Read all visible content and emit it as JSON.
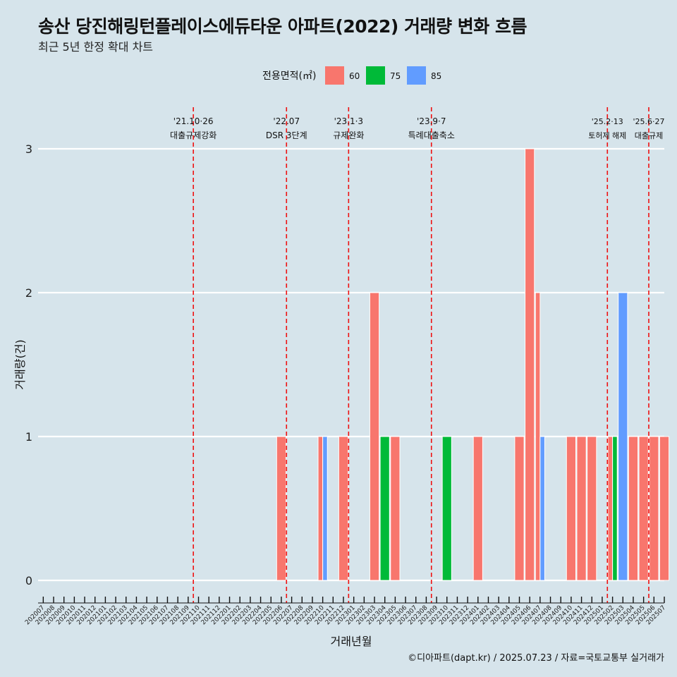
{
  "title": "송산 당진해링턴플레이스에듀타운 아파트(2022) 거래량 변화 흐름",
  "subtitle": "최근 5년 한정 확대 차트",
  "caption": "©디아파트(dapt.kr) / 2025.07.23 / 자료=국토교통부 실거래가",
  "colors": {
    "background": "#d6e4eb",
    "60": "#f8766d",
    "75": "#00ba38",
    "85": "#619cff",
    "event_line": "#ee1111",
    "grid": "#ffffff"
  },
  "chart_data": {
    "type": "bar",
    "xlabel": "거래년월",
    "ylabel": "거래량(건)",
    "ylim": [
      0,
      3
    ],
    "yticks": [
      0,
      1,
      2,
      3
    ],
    "legend_title": "전용면적(㎡)",
    "legend_position": "top",
    "categories": [
      "202007",
      "202008",
      "202009",
      "202010",
      "202011",
      "202012",
      "202101",
      "202102",
      "202103",
      "202104",
      "202105",
      "202106",
      "202107",
      "202108",
      "202109",
      "202110",
      "202111",
      "202112",
      "202201",
      "202202",
      "202203",
      "202204",
      "202205",
      "202206",
      "202207",
      "202208",
      "202209",
      "202210",
      "202211",
      "202212",
      "202301",
      "202302",
      "202303",
      "202304",
      "202305",
      "202306",
      "202307",
      "202308",
      "202309",
      "202310",
      "202311",
      "202312",
      "202401",
      "202402",
      "202403",
      "202404",
      "202405",
      "202406",
      "202407",
      "202408",
      "202409",
      "202410",
      "202411",
      "202412",
      "202501",
      "202502",
      "202503",
      "202504",
      "202505",
      "202506",
      "202507"
    ],
    "series": [
      {
        "name": "60",
        "values": [
          0,
          0,
          0,
          0,
          0,
          0,
          0,
          0,
          0,
          0,
          0,
          0,
          0,
          0,
          0,
          0,
          0,
          0,
          0,
          0,
          0,
          0,
          0,
          1,
          0,
          0,
          0,
          1,
          0,
          1,
          0,
          0,
          2,
          0,
          1,
          0,
          0,
          0,
          0,
          0,
          0,
          0,
          1,
          0,
          0,
          0,
          1,
          3,
          2,
          0,
          0,
          1,
          1,
          1,
          0,
          1,
          0,
          1,
          1,
          1,
          1
        ]
      },
      {
        "name": "75",
        "values": [
          0,
          0,
          0,
          0,
          0,
          0,
          0,
          0,
          0,
          0,
          0,
          0,
          0,
          0,
          0,
          0,
          0,
          0,
          0,
          0,
          0,
          0,
          0,
          0,
          0,
          0,
          0,
          0,
          0,
          0,
          0,
          0,
          0,
          1,
          0,
          0,
          0,
          0,
          0,
          1,
          0,
          0,
          0,
          0,
          0,
          0,
          0,
          0,
          0,
          0,
          0,
          0,
          0,
          0,
          0,
          1,
          0,
          0,
          0,
          0,
          0
        ]
      },
      {
        "name": "85",
        "values": [
          0,
          0,
          0,
          0,
          0,
          0,
          0,
          0,
          0,
          0,
          0,
          0,
          0,
          0,
          0,
          0,
          0,
          0,
          0,
          0,
          0,
          0,
          0,
          0,
          0,
          0,
          0,
          1,
          0,
          0,
          0,
          0,
          0,
          0,
          0,
          0,
          0,
          0,
          0,
          0,
          0,
          0,
          0,
          0,
          0,
          0,
          0,
          0,
          1,
          0,
          0,
          0,
          0,
          0,
          0,
          0,
          2,
          0,
          0,
          0,
          0
        ]
      }
    ],
    "events": [
      {
        "category": "202110",
        "date": "'21.10·26",
        "label": "대출규제강화"
      },
      {
        "category": "202207",
        "date": "'22.07",
        "label": "DSR 3단계"
      },
      {
        "category": "202301",
        "date": "'23.1·3",
        "label": "규제완화"
      },
      {
        "category": "202309",
        "date": "'23.9·7",
        "label": "특례대출축소"
      },
      {
        "category": "202502",
        "date": "'25.2·13",
        "label": "토허제 해제"
      },
      {
        "category": "202506",
        "date": "'25.6·27",
        "label": "대출규제"
      }
    ]
  }
}
